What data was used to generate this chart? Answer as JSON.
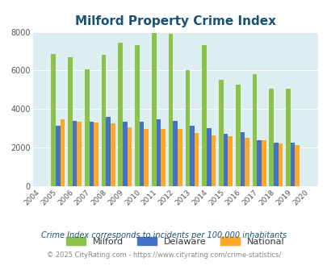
{
  "title": "Milford Property Crime Index",
  "years": [
    2004,
    2005,
    2006,
    2007,
    2008,
    2009,
    2010,
    2011,
    2012,
    2013,
    2014,
    2015,
    2016,
    2017,
    2018,
    2019,
    2020
  ],
  "milford": [
    null,
    6850,
    6700,
    6050,
    6800,
    7450,
    7300,
    7950,
    7900,
    6000,
    7300,
    5500,
    5250,
    5800,
    5050,
    5050,
    null
  ],
  "delaware": [
    null,
    3150,
    3400,
    3350,
    3600,
    3350,
    3350,
    3450,
    3400,
    3150,
    3000,
    2700,
    2800,
    2400,
    2250,
    2250,
    null
  ],
  "national": [
    null,
    3450,
    3350,
    3300,
    3250,
    3050,
    2950,
    2950,
    2950,
    2750,
    2650,
    2600,
    2500,
    2400,
    2200,
    2150,
    null
  ],
  "milford_color": "#8bc34a",
  "delaware_color": "#4472c4",
  "national_color": "#ffa726",
  "bg_color": "#ddeef0",
  "ylim": [
    0,
    8000
  ],
  "yticks": [
    0,
    2000,
    4000,
    6000,
    8000
  ],
  "subtitle": "Crime Index corresponds to incidents per 100,000 inhabitants",
  "footer": "© 2025 CityRating.com - https://www.cityrating.com/crime-statistics/",
  "title_color": "#1a5276",
  "subtitle_color": "#1a5276",
  "footer_color": "#888888"
}
